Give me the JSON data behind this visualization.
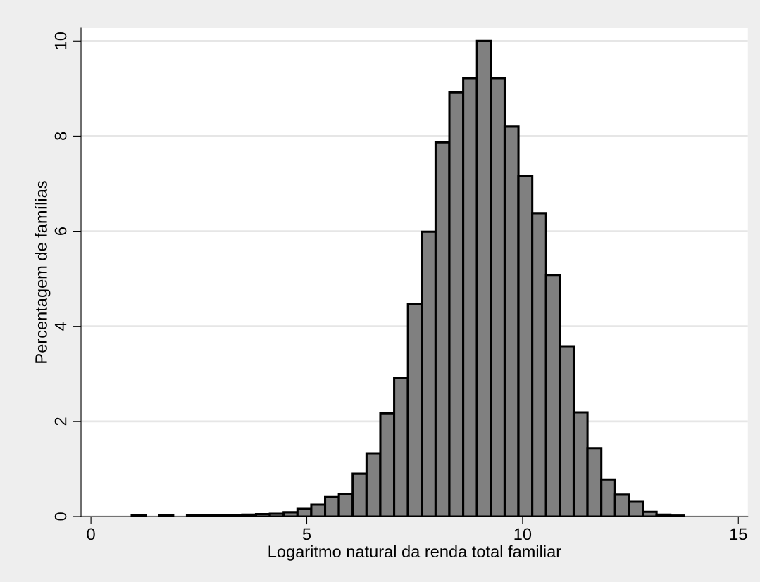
{
  "chart_data": {
    "type": "histogram",
    "xlabel": "Logaritmo natural da renda total familiar",
    "ylabel": "Percentagem de famílias",
    "bins": [
      0.945,
      1.265,
      1.585,
      1.905,
      2.225,
      2.545,
      2.865,
      3.185,
      3.505,
      3.825,
      4.145,
      4.465,
      4.785,
      5.105,
      5.425,
      5.745,
      6.065,
      6.385,
      6.705,
      7.025,
      7.345,
      7.665,
      7.985,
      8.305,
      8.625,
      8.945,
      9.265,
      9.585,
      9.905,
      10.225,
      10.545,
      10.865,
      11.185,
      11.505,
      11.825,
      12.145,
      12.465,
      12.785,
      13.105,
      13.425,
      13.745
    ],
    "values": [
      0.03,
      0,
      0.03,
      0,
      0.03,
      0.03,
      0.03,
      0.03,
      0.04,
      0.05,
      0.06,
      0.09,
      0.16,
      0.25,
      0.41,
      0.47,
      0.9,
      1.33,
      2.17,
      2.91,
      4.47,
      5.99,
      7.87,
      8.92,
      9.22,
      10.0,
      9.22,
      8.2,
      7.17,
      6.38,
      5.08,
      3.58,
      2.19,
      1.44,
      0.78,
      0.46,
      0.31,
      0.1,
      0.04,
      0.02
    ],
    "color": "#808080",
    "xlim": [
      -0.23,
      15.22
    ],
    "ylim": [
      0,
      10.27
    ],
    "xticks": [
      0,
      5,
      10,
      15
    ],
    "yticks": [
      0,
      2,
      4,
      6,
      8,
      10
    ],
    "grid": "y"
  }
}
